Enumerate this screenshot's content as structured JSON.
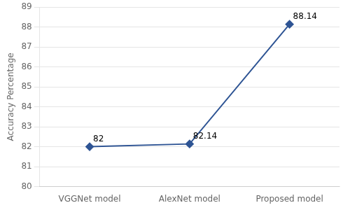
{
  "chart_data": {
    "type": "line",
    "categories": [
      "VGGNet model",
      "AlexNet model",
      "Proposed model"
    ],
    "values": [
      82.0,
      82.14,
      88.14
    ],
    "value_labels": [
      "82",
      "82.14",
      "88.14"
    ],
    "data_labels": true,
    "ylabel": "Accuracy Percentage",
    "ylim": [
      80,
      89
    ],
    "yticks": [
      80,
      81,
      82,
      83,
      84,
      85,
      86,
      87,
      88,
      89
    ],
    "color": "#2e5494",
    "marker": "diamond",
    "grid": true
  }
}
